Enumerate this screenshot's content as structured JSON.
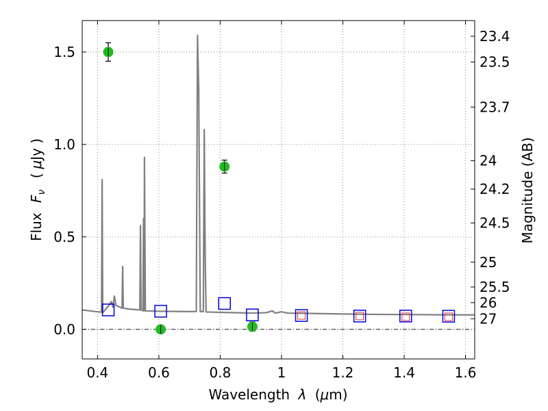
{
  "chart_data": {
    "type": "scatter",
    "xlabel_prefix": "Wavelength",
    "xlabel_symbol": "λ",
    "xlabel_unit_open": "(",
    "xlabel_unit_mu": "μ",
    "xlabel_unit_rest": "m)",
    "ylabel_prefix": "Flux",
    "ylabel_symbol": "F",
    "ylabel_subscript": "ν",
    "ylabel_unit_open": "(",
    "ylabel_unit_mu": "μ",
    "ylabel_unit_rest": "Jy )",
    "y2label": "Magnitude (AB)",
    "xlim": [
      0.35,
      1.63
    ],
    "ylim": [
      -0.16,
      1.67
    ],
    "grid": true,
    "x_ticks": [
      {
        "value": 0.4,
        "label": "0.4"
      },
      {
        "value": 0.6,
        "label": "0.6"
      },
      {
        "value": 0.8,
        "label": "0.8"
      },
      {
        "value": 1.0,
        "label": "1"
      },
      {
        "value": 1.2,
        "label": "1.2"
      },
      {
        "value": 1.4,
        "label": "1.4"
      },
      {
        "value": 1.6,
        "label": "1.6"
      }
    ],
    "y_ticks": [
      {
        "value": 0.0,
        "label": "0.0"
      },
      {
        "value": 0.5,
        "label": "0.5"
      },
      {
        "value": 1.0,
        "label": "1.0"
      },
      {
        "value": 1.5,
        "label": "1.5"
      }
    ],
    "mag_ticks": [
      {
        "value": 23.4,
        "label": "23.4"
      },
      {
        "value": 23.5,
        "label": "23.5"
      },
      {
        "value": 23.7,
        "label": "23.7"
      },
      {
        "value": 24,
        "label": "24"
      },
      {
        "value": 24.2,
        "label": "24.2"
      },
      {
        "value": 24.5,
        "label": "24.5"
      },
      {
        "value": 25,
        "label": "25"
      },
      {
        "value": 25.5,
        "label": "25.5"
      },
      {
        "value": 26,
        "label": "26"
      },
      {
        "value": 27,
        "label": "27"
      }
    ],
    "colors": {
      "spectrum": "#808080",
      "observed": "#22bb22",
      "model_blue": "#0000dd",
      "model_red": "#dd3333",
      "grid": "#888888"
    },
    "spectrum": [
      [
        0.35,
        0.105
      ],
      [
        0.4,
        0.095
      ],
      [
        0.413,
        0.093
      ],
      [
        0.415,
        0.81
      ],
      [
        0.417,
        0.09
      ],
      [
        0.44,
        0.135
      ],
      [
        0.445,
        0.15
      ],
      [
        0.45,
        0.12
      ],
      [
        0.455,
        0.18
      ],
      [
        0.46,
        0.13
      ],
      [
        0.48,
        0.115
      ],
      [
        0.482,
        0.34
      ],
      [
        0.484,
        0.115
      ],
      [
        0.5,
        0.11
      ],
      [
        0.538,
        0.105
      ],
      [
        0.54,
        0.56
      ],
      [
        0.542,
        0.105
      ],
      [
        0.548,
        0.1
      ],
      [
        0.55,
        0.6
      ],
      [
        0.552,
        0.1
      ],
      [
        0.553,
        0.93
      ],
      [
        0.556,
        0.1
      ],
      [
        0.6,
        0.098
      ],
      [
        0.65,
        0.097
      ],
      [
        0.7,
        0.096
      ],
      [
        0.722,
        0.096
      ],
      [
        0.726,
        1.59
      ],
      [
        0.73,
        1.3
      ],
      [
        0.735,
        0.096
      ],
      [
        0.745,
        0.096
      ],
      [
        0.748,
        1.08
      ],
      [
        0.751,
        0.4
      ],
      [
        0.754,
        0.094
      ],
      [
        0.85,
        0.09
      ],
      [
        0.9,
        0.088
      ],
      [
        0.95,
        0.09
      ],
      [
        0.97,
        0.1
      ],
      [
        0.98,
        0.088
      ],
      [
        1.0,
        0.095
      ],
      [
        1.02,
        0.088
      ],
      [
        1.1,
        0.086
      ],
      [
        1.2,
        0.083
      ],
      [
        1.3,
        0.081
      ],
      [
        1.4,
        0.08
      ],
      [
        1.5,
        0.079
      ],
      [
        1.63,
        0.078
      ]
    ],
    "observed_points": [
      {
        "x": 0.435,
        "y": 1.5,
        "err": 0.05
      },
      {
        "x": 0.606,
        "y": 0.0,
        "err": 0.015
      },
      {
        "x": 0.814,
        "y": 0.88,
        "err": 0.035
      },
      {
        "x": 0.905,
        "y": 0.015,
        "err": 0.025
      }
    ],
    "model_blue": [
      {
        "x": 0.435,
        "y": 0.105
      },
      {
        "x": 0.606,
        "y": 0.098
      },
      {
        "x": 0.814,
        "y": 0.14
      },
      {
        "x": 0.905,
        "y": 0.078
      },
      {
        "x": 1.065,
        "y": 0.075
      },
      {
        "x": 1.255,
        "y": 0.072
      },
      {
        "x": 1.405,
        "y": 0.072
      },
      {
        "x": 1.545,
        "y": 0.071
      }
    ],
    "model_red": [
      {
        "x": 1.065,
        "y": 0.075
      },
      {
        "x": 1.255,
        "y": 0.072
      },
      {
        "x": 1.405,
        "y": 0.068
      },
      {
        "x": 1.545,
        "y": 0.068
      }
    ]
  }
}
